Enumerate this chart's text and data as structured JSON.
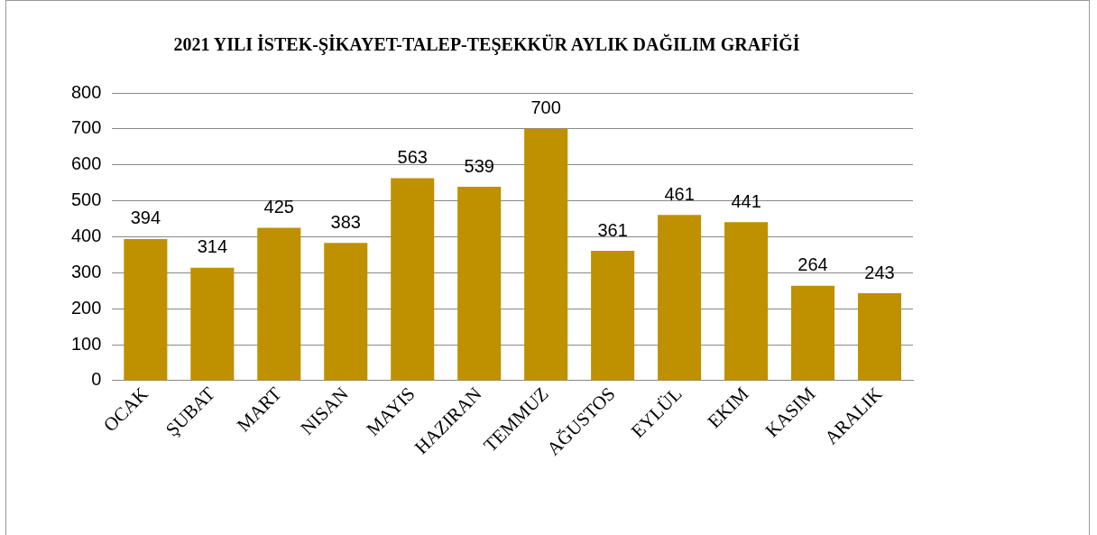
{
  "chart_data": {
    "type": "bar",
    "title": "2021 YILI İSTEK-ŞİKAYET-TALEP-TEŞEKKÜR AYLIK DAĞILIM GRAFİĞİ",
    "categories": [
      "OCAK",
      "ŞUBAT",
      "MART",
      "NISAN",
      "MAYIS",
      "HAZIRAN",
      "TEMMUZ",
      "AĞUSTOS",
      "EYLÜL",
      "EKIM",
      "KASIM",
      "ARALIK"
    ],
    "values": [
      394,
      314,
      425,
      383,
      563,
      539,
      700,
      361,
      461,
      441,
      264,
      243
    ],
    "color": "#bf9000",
    "ylim": [
      0,
      800
    ],
    "yticks": [
      0,
      100,
      200,
      300,
      400,
      500,
      600,
      700,
      800
    ],
    "grid": "y",
    "data_labels": true,
    "legend": false
  }
}
